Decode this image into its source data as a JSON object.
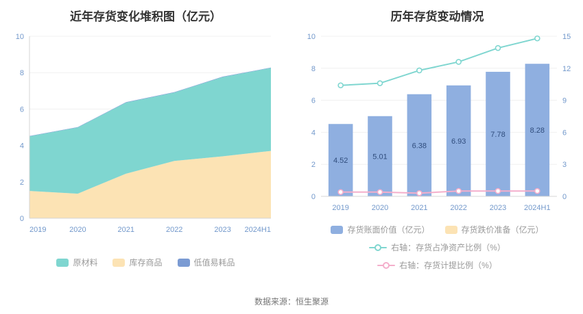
{
  "page": {
    "source_note": "数据来源：恒生聚源"
  },
  "chart_data": [
    {
      "type": "area",
      "stacked": true,
      "title": "近年存货变化堆积图（亿元）",
      "categories": [
        "2019",
        "2020",
        "2021",
        "2022",
        "2023",
        "2024H1"
      ],
      "ylim": [
        0,
        10
      ],
      "yticks": [
        0,
        2,
        4,
        6,
        8,
        10
      ],
      "grid": true,
      "legend_position": "bottom",
      "series": [
        {
          "name": "库存商品",
          "color": "#fce3b4",
          "values": [
            1.5,
            1.35,
            2.45,
            3.15,
            3.4,
            3.7
          ]
        },
        {
          "name": "原材料",
          "color": "#7fd6d0",
          "values": [
            3.0,
            3.64,
            3.91,
            3.76,
            4.36,
            4.56
          ]
        },
        {
          "name": "低值易耗品",
          "color": "#7b9bd3",
          "values": [
            0.02,
            0.02,
            0.02,
            0.02,
            0.02,
            0.02
          ]
        }
      ],
      "legend": [
        {
          "label": "原材料",
          "color": "#7fd6d0"
        },
        {
          "label": "库存商品",
          "color": "#fce3b4"
        },
        {
          "label": "低值易耗品",
          "color": "#7b9bd3"
        }
      ]
    },
    {
      "type": "bar",
      "title": "历年存货变动情况",
      "categories": [
        "2019",
        "2020",
        "2021",
        "2022",
        "2023",
        "2024H1"
      ],
      "ylim_left": [
        0,
        10
      ],
      "yticks_left": [
        0,
        2,
        4,
        6,
        8,
        10
      ],
      "ylim_right": [
        0,
        15
      ],
      "yticks_right": [
        0,
        3,
        6,
        9,
        12,
        15
      ],
      "grid": true,
      "legend_position": "bottom",
      "series": [
        {
          "name": "存货账面价值（亿元）",
          "kind": "bar",
          "axis": "left",
          "color": "#8fafe0",
          "values": [
            4.52,
            5.01,
            6.38,
            6.93,
            7.78,
            8.28
          ],
          "show_labels": true
        },
        {
          "name": "存货跌价准备（亿元）",
          "kind": "bar",
          "axis": "left",
          "color": "#fce3b4",
          "values": [
            0,
            0,
            0,
            0,
            0,
            0
          ],
          "show_labels": false
        },
        {
          "name": "右轴：存货占净资产比例（%）",
          "kind": "line",
          "axis": "right",
          "color": "#7fd6d0",
          "values": [
            10.4,
            10.6,
            11.8,
            12.6,
            13.9,
            14.8
          ]
        },
        {
          "name": "右轴：存货计提比例（%）",
          "kind": "line",
          "axis": "right",
          "color": "#f4aecb",
          "values": [
            0.4,
            0.4,
            0.3,
            0.5,
            0.5,
            0.5
          ]
        }
      ],
      "legend": [
        {
          "label": "存货账面价值（亿元）",
          "color": "#8fafe0",
          "mark": "rect"
        },
        {
          "label": "存货跌价准备（亿元）",
          "color": "#fce3b4",
          "mark": "rect"
        },
        {
          "label": "右轴：存货占净资产比例（%）",
          "color": "#7fd6d0",
          "mark": "line"
        },
        {
          "label": "右轴：存货计提比例（%）",
          "color": "#f4aecb",
          "mark": "line"
        }
      ]
    }
  ]
}
